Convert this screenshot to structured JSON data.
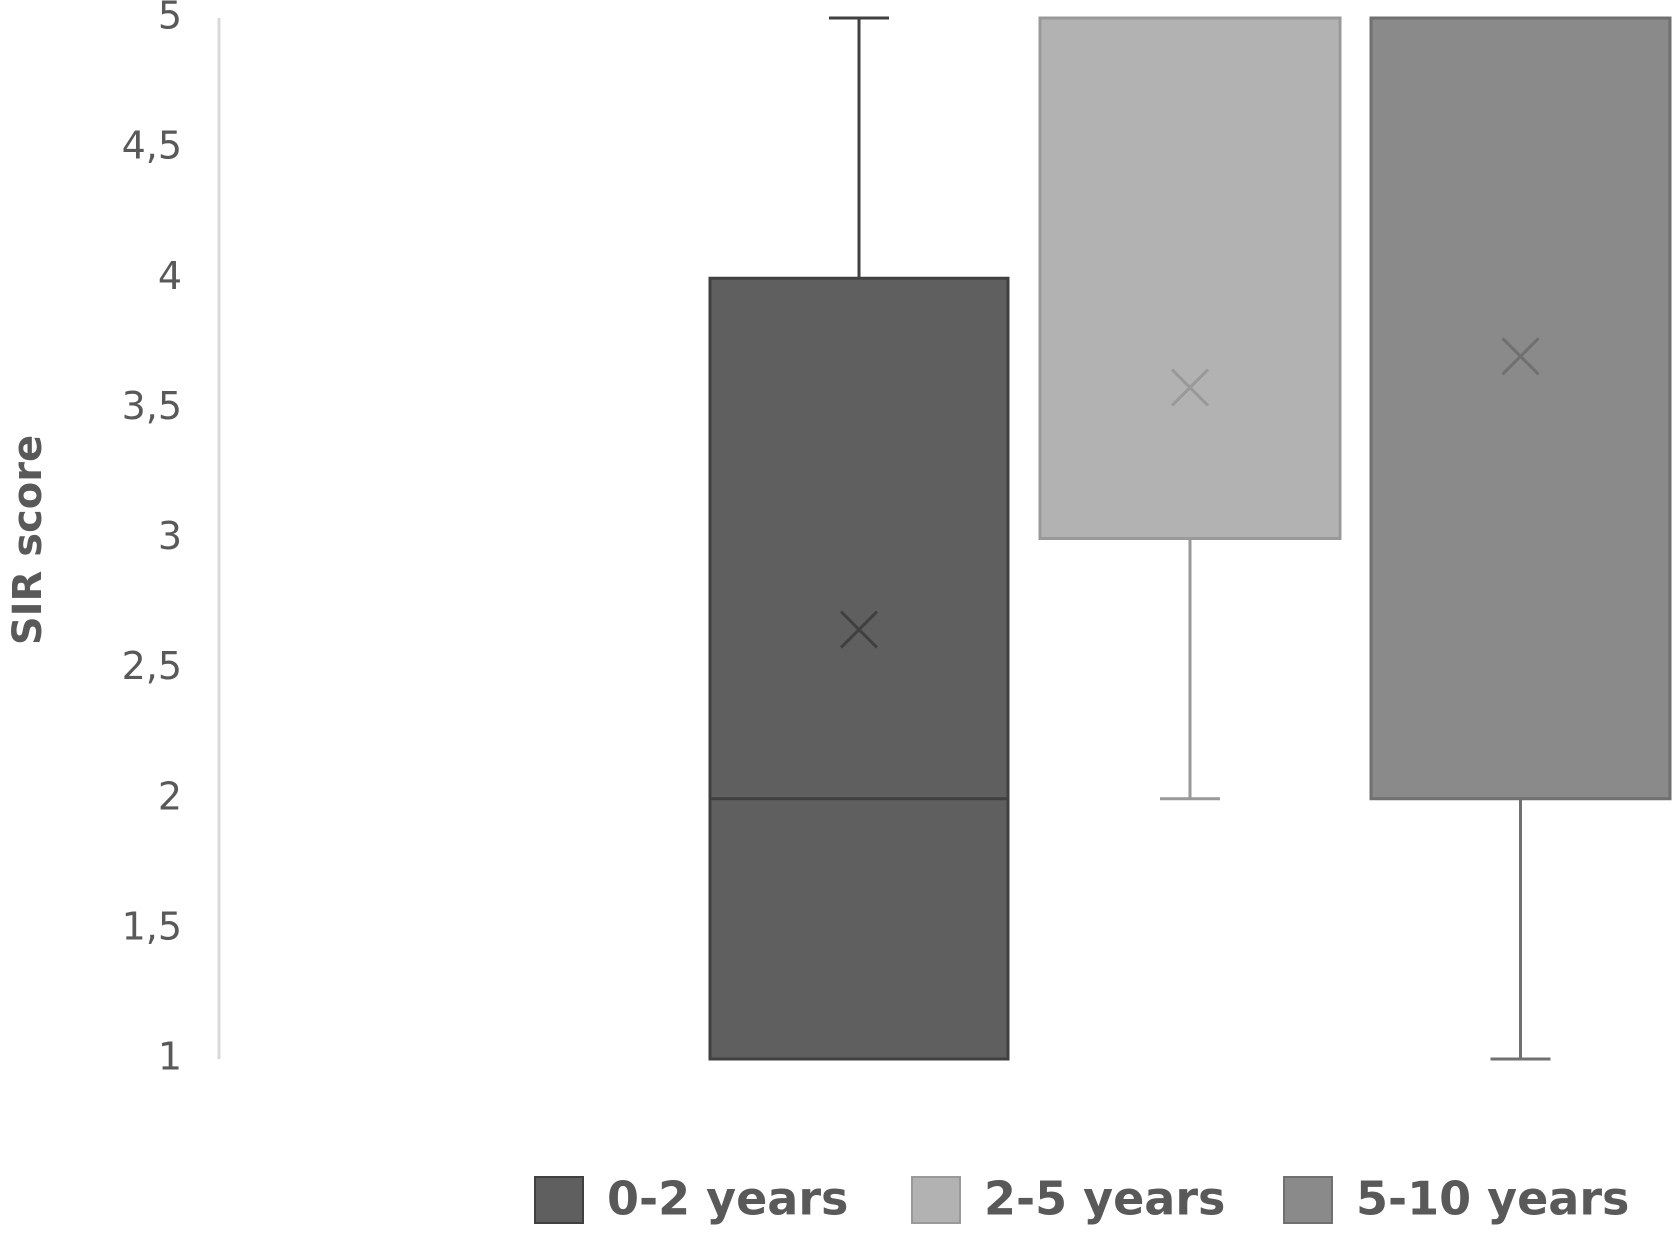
{
  "chart_data": {
    "type": "box",
    "ylabel": "SIR score",
    "ylim": [
      1,
      5
    ],
    "yticks": [
      1,
      {
        "value": 1.5,
        "label": "1,5"
      },
      2,
      {
        "value": 2.5,
        "label": "2,5"
      },
      3,
      {
        "value": 3.5,
        "label": "3,5"
      },
      4,
      {
        "value": 4.5,
        "label": "4,5"
      },
      5
    ],
    "series": [
      {
        "name": "0-2 years",
        "color": "#5f5f5f",
        "min": 1,
        "q1": 1,
        "median": 2,
        "q3": 4,
        "max": 5,
        "mean": 2.65
      },
      {
        "name": "2-5 years",
        "color": "#b2b2b2",
        "min": 2,
        "q1": 3,
        "median": 5,
        "q3": 5,
        "max": 5,
        "mean": 3.58
      },
      {
        "name": "5-10 years",
        "color": "#8a8a8a",
        "min": 1,
        "q1": 2,
        "median": 5,
        "q3": 5,
        "max": 5,
        "mean": 3.7
      }
    ]
  }
}
